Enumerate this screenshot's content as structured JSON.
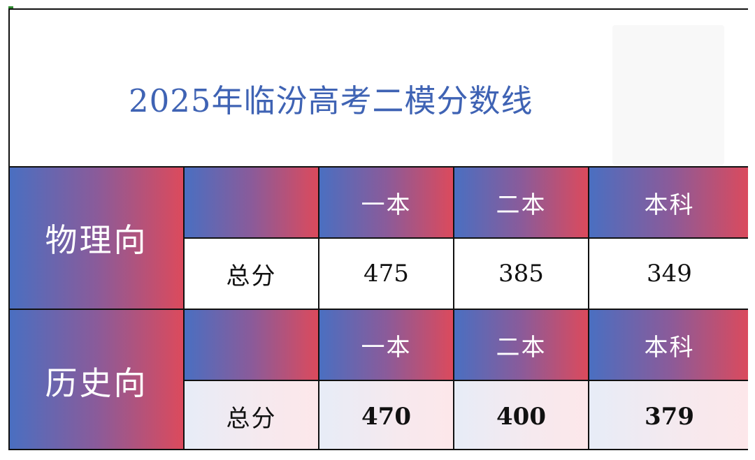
{
  "title": "2025年临汾高考二模分数线",
  "columns": [
    "一本",
    "二本",
    "本科"
  ],
  "groups": [
    {
      "name": "物理向",
      "row_label": "总分",
      "values": [
        "475",
        "385",
        "349"
      ]
    },
    {
      "name": "历史向",
      "row_label": "总分",
      "values": [
        "470",
        "400",
        "379"
      ]
    }
  ],
  "colors": {
    "title": "#3f63b4",
    "gradient_start": "#4a6fc1",
    "gradient_end": "#dc4a5c"
  }
}
